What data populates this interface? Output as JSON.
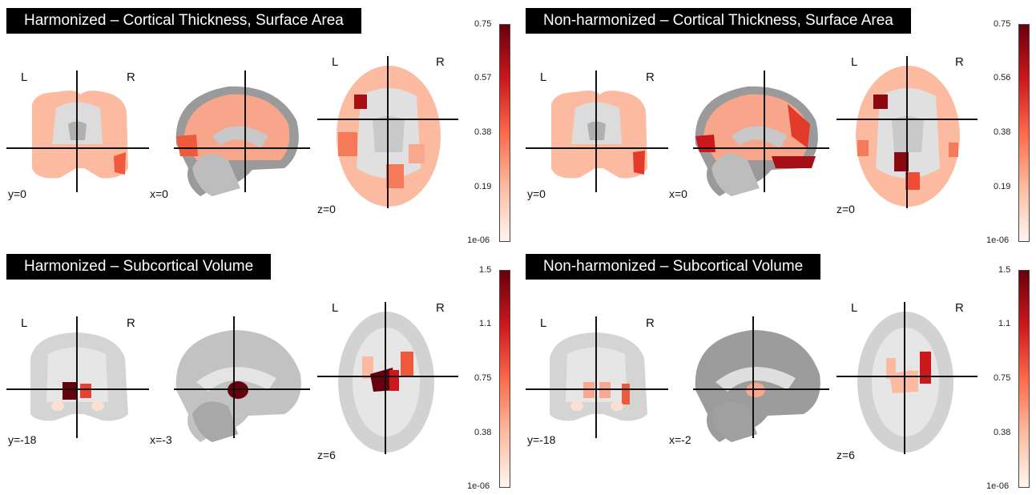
{
  "panels": [
    {
      "title": "Harmonized – Cortical Thickness, Surface Area",
      "lr": {
        "l": "L",
        "r": "R"
      },
      "coords": {
        "coronal": "y=0",
        "sagittal": "x=0",
        "axial": "z=0"
      },
      "colorbar_ticks": [
        "0.75",
        "0.57",
        "0.38",
        "0.19",
        "1e-06"
      ]
    },
    {
      "title": "Non-harmonized – Cortical Thickness, Surface Area",
      "lr": {
        "l": "L",
        "r": "R"
      },
      "coords": {
        "coronal": "y=0",
        "sagittal": "x=0",
        "axial": "z=0"
      },
      "colorbar_ticks": [
        "0.75",
        "0.56",
        "0.38",
        "0.19",
        "1e-06"
      ]
    },
    {
      "title": "Harmonized – Subcortical Volume",
      "lr": {
        "l": "L",
        "r": "R"
      },
      "coords": {
        "coronal": "y=-18",
        "sagittal": "x=-3",
        "axial": "z=6"
      },
      "colorbar_ticks": [
        "1.5",
        "1.1",
        "0.75",
        "0.38",
        "1e-06"
      ]
    },
    {
      "title": "Non-harmonized – Subcortical Volume",
      "lr": {
        "l": "L",
        "r": "R"
      },
      "coords": {
        "coronal": "y=-18",
        "sagittal": "x=-2",
        "axial": "z=6"
      },
      "colorbar_ticks": [
        "1.5",
        "1.1",
        "0.75",
        "0.38",
        "1e-06"
      ]
    }
  ],
  "colors": {
    "brain_gray": "#cfcfcf",
    "brain_dark": "#8a8a8a",
    "scale_low": "#fff5f0",
    "scale_mid": "#fb6a4a",
    "scale_high": "#67000d"
  }
}
